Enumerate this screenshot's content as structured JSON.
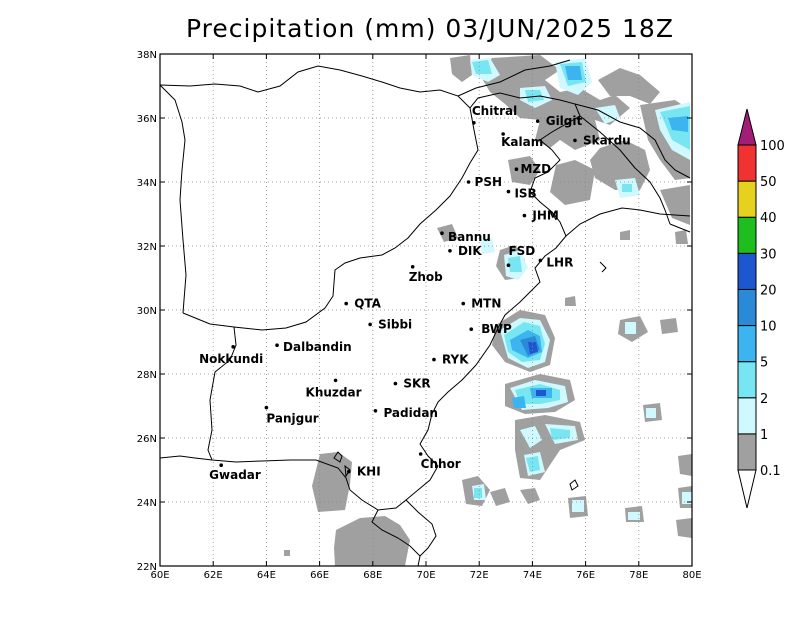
{
  "title": "Precipitation (mm) 03/JUN/2025 18Z",
  "map": {
    "lon_range": [
      60,
      80
    ],
    "lat_range": [
      22,
      38
    ],
    "lon_ticks": [
      "60E",
      "62E",
      "64E",
      "66E",
      "68E",
      "70E",
      "72E",
      "74E",
      "76E",
      "78E",
      "80E"
    ],
    "lat_ticks": [
      "22N",
      "24N",
      "26N",
      "28N",
      "30N",
      "32N",
      "34N",
      "36N",
      "38N"
    ],
    "grid": true
  },
  "cities": [
    {
      "name": "Chitral",
      "lon": 71.8,
      "lat": 35.85
    },
    {
      "name": "Gilgit",
      "lon": 74.2,
      "lat": 35.9
    },
    {
      "name": "Kalam",
      "lon": 72.9,
      "lat": 35.5
    },
    {
      "name": "Skardu",
      "lon": 75.6,
      "lat": 35.3
    },
    {
      "name": "MZD",
      "lon": 73.4,
      "lat": 34.4
    },
    {
      "name": "PSH",
      "lon": 71.6,
      "lat": 34.0
    },
    {
      "name": "ISB",
      "lon": 73.1,
      "lat": 33.7
    },
    {
      "name": "JHM",
      "lon": 73.7,
      "lat": 32.95
    },
    {
      "name": "Bannu",
      "lon": 70.6,
      "lat": 32.4
    },
    {
      "name": "DIK",
      "lon": 70.9,
      "lat": 31.85
    },
    {
      "name": "FSD",
      "lon": 73.1,
      "lat": 31.4
    },
    {
      "name": "LHR",
      "lon": 74.3,
      "lat": 31.55
    },
    {
      "name": "Zhob",
      "lon": 69.5,
      "lat": 31.35
    },
    {
      "name": "QTA",
      "lon": 67.0,
      "lat": 30.2
    },
    {
      "name": "MTN",
      "lon": 71.4,
      "lat": 30.2
    },
    {
      "name": "Sibbi",
      "lon": 67.9,
      "lat": 29.55
    },
    {
      "name": "BWP",
      "lon": 71.7,
      "lat": 29.4
    },
    {
      "name": "Dalbandin",
      "lon": 64.4,
      "lat": 28.9
    },
    {
      "name": "Nokkundi",
      "lon": 62.75,
      "lat": 28.85
    },
    {
      "name": "RYK",
      "lon": 70.3,
      "lat": 28.45
    },
    {
      "name": "Khuzdar",
      "lon": 66.6,
      "lat": 27.8
    },
    {
      "name": "SKR",
      "lon": 68.85,
      "lat": 27.7
    },
    {
      "name": "Panjgur",
      "lon": 64.0,
      "lat": 26.95
    },
    {
      "name": "Padidan",
      "lon": 68.1,
      "lat": 26.85
    },
    {
      "name": "Chhor",
      "lon": 69.8,
      "lat": 25.5
    },
    {
      "name": "KHI",
      "lon": 67.1,
      "lat": 24.95
    },
    {
      "name": "Gwadar",
      "lon": 62.3,
      "lat": 25.15
    }
  ],
  "colorbar": {
    "levels": [
      "0.1",
      "1",
      "2",
      "5",
      "10",
      "20",
      "30",
      "40",
      "50",
      "100"
    ],
    "colors": [
      "#a0a0a0",
      "#d0f8ff",
      "#78e6f2",
      "#3cb4f0",
      "#2a8ad8",
      "#1e56d0",
      "#1ebe1e",
      "#e6d21e",
      "#f03232",
      "#a01e78"
    ]
  },
  "precip_colors": {
    "gray": "#a0a0a0",
    "light": "#d0f8ff",
    "cyan": "#78e6f2",
    "blue": "#3cb4f0",
    "mid": "#2a8ad8",
    "dark": "#1e56d0"
  }
}
